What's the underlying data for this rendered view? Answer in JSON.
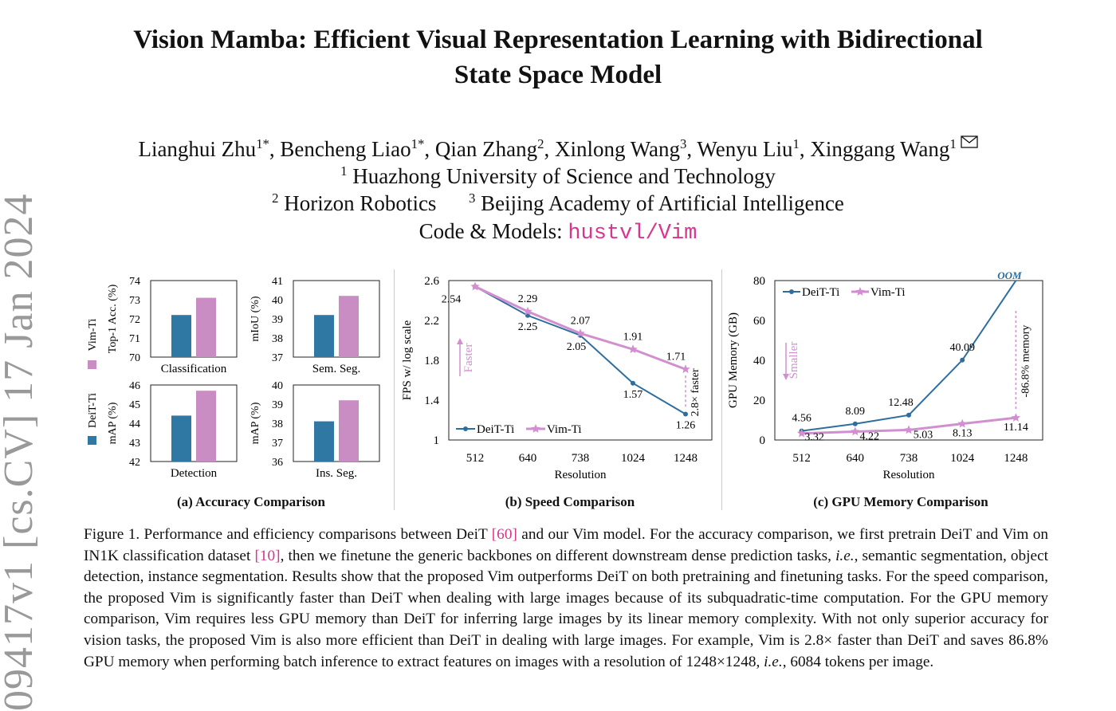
{
  "sidebar": {
    "arxiv_id": "09417v1  [cs.CV]  17 Jan 2024"
  },
  "paper": {
    "title_line1": "Vision Mamba: Efficient Visual Representation Learning with Bidirectional",
    "title_line2": "State Space Model",
    "authors": [
      {
        "name": "Lianghui Zhu",
        "sup": "1*"
      },
      {
        "name": "Bencheng Liao",
        "sup": "1*"
      },
      {
        "name": "Qian Zhang",
        "sup": "2"
      },
      {
        "name": "Xinlong Wang",
        "sup": "3"
      },
      {
        "name": "Wenyu Liu",
        "sup": "1"
      },
      {
        "name": "Xinggang Wang",
        "sup": "1"
      }
    ],
    "affil1_sup": "1",
    "affil1": "Huazhong University of Science and Technology",
    "affil2_sup": "2",
    "affil2": "Horizon Robotics",
    "affil3_sup": "3",
    "affil3": "Beijing Academy of Artificial Intelligence",
    "code_label": "Code & Models: ",
    "code_link": "hustvl/Vim"
  },
  "colors": {
    "deit": "#2e78a3",
    "vim": "#c98cc3",
    "accent": "#d8358f",
    "deit_line": "#2e6e9e",
    "vim_line": "#d28fd0"
  },
  "chart_data": [
    {
      "type": "bar",
      "title": "(a) Accuracy Comparison",
      "legend": [
        "DeiT-Ti",
        "Vim-Ti"
      ],
      "panels": [
        {
          "label": "Classification",
          "ylabel": "Top-1 Acc. (%)",
          "ylim": [
            70,
            74
          ],
          "ticks": [
            70,
            71,
            72,
            73,
            74
          ],
          "values": {
            "DeiT-Ti": 72.2,
            "Vim-Ti": 73.1
          }
        },
        {
          "label": "Sem. Seg.",
          "ylabel": "mIoU (%)",
          "ylim": [
            37,
            41
          ],
          "ticks": [
            37,
            38,
            39,
            40,
            41
          ],
          "values": {
            "DeiT-Ti": 39.2,
            "Vim-Ti": 40.2
          }
        },
        {
          "label": "Detection",
          "ylabel": "mAP (%)",
          "ylim": [
            42,
            46
          ],
          "ticks": [
            42,
            43,
            44,
            45,
            46
          ],
          "values": {
            "DeiT-Ti": 44.4,
            "Vim-Ti": 45.7
          }
        },
        {
          "label": "Ins. Seg.",
          "ylabel": "mAP (%)",
          "ylim": [
            36,
            40
          ],
          "ticks": [
            36,
            37,
            38,
            39,
            40
          ],
          "values": {
            "DeiT-Ti": 38.1,
            "Vim-Ti": 39.2
          }
        }
      ]
    },
    {
      "type": "line",
      "title": "(b) Speed Comparison",
      "xlabel": "Resolution",
      "ylabel": "FPS w/ log scale",
      "categories": [
        "512",
        "640",
        "738",
        "1024",
        "1248"
      ],
      "yticks": [
        "1",
        "1.4",
        "1.8",
        "2.2",
        "2.6"
      ],
      "ylim": [
        1,
        2.6
      ],
      "series": [
        {
          "name": "DeiT-Ti",
          "values": [
            2.54,
            2.25,
            2.05,
            1.57,
            1.26
          ]
        },
        {
          "name": "Vim-Ti",
          "values": [
            2.54,
            2.29,
            2.07,
            1.91,
            1.71
          ]
        }
      ],
      "annotations": {
        "arrow": "Faster",
        "gap": "2.8× faster"
      }
    },
    {
      "type": "line",
      "title": "(c) GPU Memory Comparison",
      "xlabel": "Resolution",
      "ylabel": "GPU Memory (GB)",
      "categories": [
        "512",
        "640",
        "738",
        "1024",
        "1248"
      ],
      "yticks": [
        "0",
        "20",
        "40",
        "60",
        "80"
      ],
      "ylim": [
        0,
        80
      ],
      "series": [
        {
          "name": "DeiT-Ti",
          "values": [
            4.56,
            8.09,
            12.48,
            40.09,
            null
          ],
          "oom_label": "OOM"
        },
        {
          "name": "Vim-Ti",
          "values": [
            3.32,
            4.22,
            5.03,
            8.13,
            11.14
          ]
        }
      ],
      "annotations": {
        "arrow": "Smaller",
        "gap": "-86.8% memory"
      }
    }
  ],
  "caption": {
    "p1": "Figure 1. Performance and efficiency comparisons between DeiT ",
    "ref1": "[60]",
    "p2": " and our Vim model. For the accuracy comparison, we first pretrain DeiT and Vim on IN1K classification dataset ",
    "ref2": "[10]",
    "p3": ", then we finetune the generic backbones on different downstream dense prediction tasks, ",
    "ie1": "i.e.",
    "p4": ", semantic segmentation, object detection, instance segmentation.  Results show that the proposed Vim outperforms DeiT on both pretraining and finetuning tasks.  For the speed comparison, the proposed Vim is significantly faster than DeiT when dealing with large images because of its subquadratic-time computation. For the GPU memory comparison, Vim requires less GPU memory than DeiT for inferring large images by its linear memory complexity.  With not only superior accuracy for vision tasks, the proposed Vim is also more efficient than DeiT in dealing with large images. For example, Vim is 2.8× faster than DeiT and saves 86.8% GPU memory when performing batch inference to extract features on images with a resolution of 1248×1248, ",
    "ie2": "i.e.",
    "p5": ", 6084 tokens per image."
  }
}
